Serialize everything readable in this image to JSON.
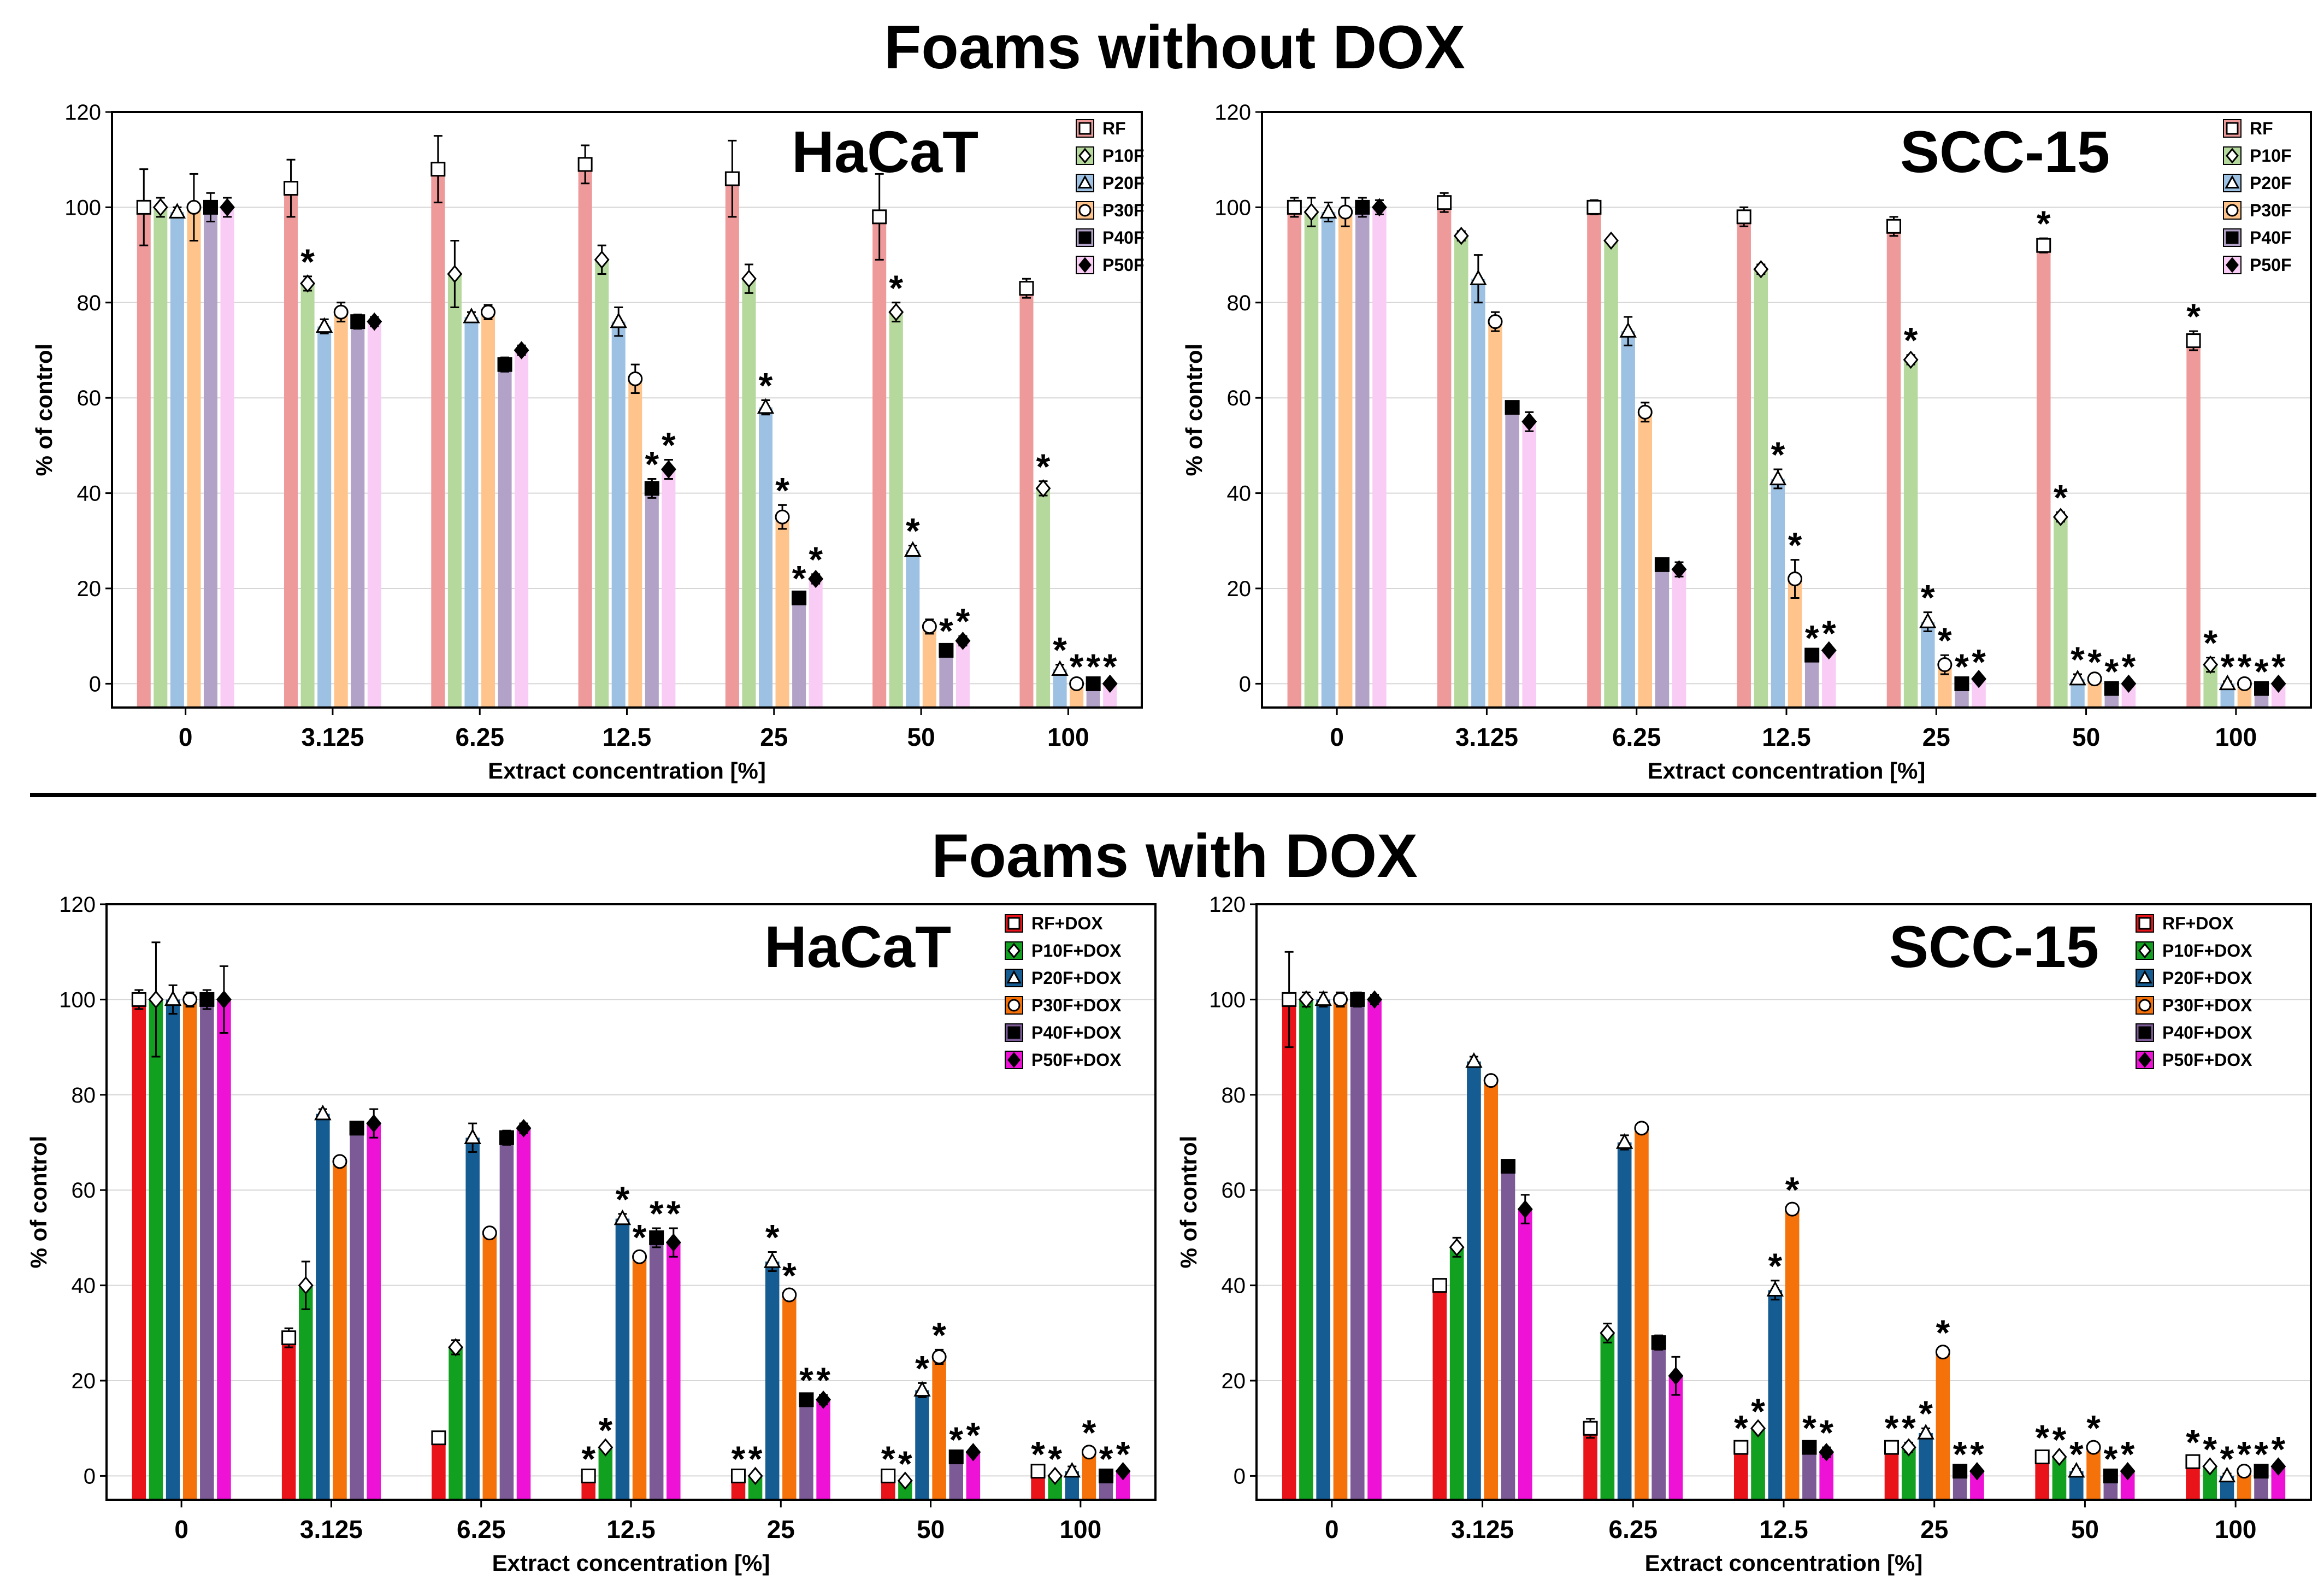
{
  "sections": {
    "top": {
      "title": "Foams without DOX"
    },
    "bottom": {
      "title": "Foams with DOX"
    }
  },
  "colors": {
    "nodox": [
      "#ef9a9a",
      "#b5d99c",
      "#9cc1e3",
      "#ffc48c",
      "#b3a2c8",
      "#f9ccf5"
    ],
    "dox": [
      "#e8141a",
      "#12a020",
      "#155c93",
      "#f5710a",
      "#7b5a95",
      "#ee12d6"
    ]
  },
  "chart_data": [
    {
      "type": "bar",
      "title": "HaCaT",
      "section": "Foams without DOX",
      "xlabel": "Extract concentration [%]",
      "ylabel": "% of control",
      "ylim": [
        -5,
        120
      ],
      "yticks": [
        0,
        20,
        40,
        60,
        80,
        100,
        120
      ],
      "legend_position": "top-right",
      "categories": [
        "0",
        "3.125",
        "6.25",
        "12.5",
        "25",
        "50",
        "100"
      ],
      "series": [
        {
          "name": "RF",
          "marker": "square",
          "values": [
            100,
            104,
            108,
            109,
            106,
            98,
            83
          ],
          "errors": [
            8,
            6,
            7,
            4,
            8,
            9,
            2
          ],
          "significant": [
            false,
            false,
            false,
            false,
            false,
            false,
            false
          ]
        },
        {
          "name": "P10F",
          "marker": "diamond",
          "values": [
            100,
            84,
            86,
            89,
            85,
            78,
            41
          ],
          "errors": [
            2,
            1.5,
            7,
            3,
            3,
            2,
            1.5
          ],
          "significant": [
            false,
            true,
            false,
            false,
            false,
            true,
            true
          ]
        },
        {
          "name": "P20F",
          "marker": "triangle",
          "values": [
            99,
            75,
            77,
            76,
            58,
            28,
            3
          ],
          "errors": [
            1,
            1.5,
            1,
            3,
            1.5,
            1,
            1
          ],
          "significant": [
            false,
            false,
            false,
            false,
            true,
            true,
            true
          ]
        },
        {
          "name": "P30F",
          "marker": "circle",
          "values": [
            100,
            78,
            78,
            64,
            35,
            12,
            0
          ],
          "errors": [
            7,
            2,
            1.5,
            3,
            2.5,
            1.5,
            0.5
          ],
          "significant": [
            false,
            false,
            false,
            false,
            true,
            false,
            true
          ]
        },
        {
          "name": "P40F",
          "marker": "filled-square",
          "values": [
            100,
            76,
            67,
            41,
            18,
            7,
            0
          ],
          "errors": [
            3,
            1.5,
            1.5,
            2,
            1,
            1,
            0.5
          ],
          "significant": [
            false,
            false,
            false,
            true,
            true,
            true,
            true
          ]
        },
        {
          "name": "P50F",
          "marker": "filled-diamond",
          "values": [
            100,
            76,
            70,
            45,
            22,
            9,
            0
          ],
          "errors": [
            2,
            1,
            1,
            2,
            1,
            1,
            0.5
          ],
          "significant": [
            false,
            false,
            false,
            true,
            true,
            true,
            true
          ]
        }
      ]
    },
    {
      "type": "bar",
      "title": "SCC-15",
      "section": "Foams without DOX",
      "xlabel": "Extract concentration [%]",
      "ylabel": "% of control",
      "ylim": [
        -5,
        120
      ],
      "yticks": [
        0,
        20,
        40,
        60,
        80,
        100,
        120
      ],
      "legend_position": "top-right",
      "categories": [
        "0",
        "3.125",
        "6.25",
        "12.5",
        "25",
        "50",
        "100"
      ],
      "series": [
        {
          "name": "RF",
          "marker": "square",
          "values": [
            100,
            101,
            100,
            98,
            96,
            92,
            72
          ],
          "errors": [
            2,
            2,
            1.5,
            2,
            2,
            1.5,
            2
          ],
          "significant": [
            false,
            false,
            false,
            false,
            false,
            true,
            true
          ]
        },
        {
          "name": "P10F",
          "marker": "diamond",
          "values": [
            99,
            94,
            93,
            87,
            68,
            35,
            4
          ],
          "errors": [
            3,
            1,
            0.5,
            1,
            1,
            1,
            1.5
          ],
          "significant": [
            false,
            false,
            false,
            false,
            true,
            true,
            true
          ]
        },
        {
          "name": "P20F",
          "marker": "triangle",
          "values": [
            99,
            85,
            74,
            43,
            13,
            1,
            0
          ],
          "errors": [
            2,
            5,
            3,
            2,
            2,
            1,
            0.5
          ],
          "significant": [
            false,
            false,
            false,
            true,
            true,
            true,
            true
          ]
        },
        {
          "name": "P30F",
          "marker": "circle",
          "values": [
            99,
            76,
            57,
            22,
            4,
            1,
            0
          ],
          "errors": [
            3,
            2,
            2,
            4,
            2,
            0.5,
            0.5
          ],
          "significant": [
            false,
            false,
            false,
            true,
            true,
            true,
            true
          ]
        },
        {
          "name": "P40F",
          "marker": "filled-square",
          "values": [
            100,
            58,
            25,
            6,
            0,
            -1,
            -1
          ],
          "errors": [
            2,
            1,
            0.5,
            0.5,
            0.5,
            0.5,
            0.5
          ],
          "significant": [
            false,
            false,
            false,
            true,
            true,
            true,
            true
          ]
        },
        {
          "name": "P50F",
          "marker": "filled-diamond",
          "values": [
            100,
            55,
            24,
            7,
            1,
            0,
            0
          ],
          "errors": [
            1.5,
            2,
            1.5,
            0.5,
            0.5,
            0.5,
            0.5
          ],
          "significant": [
            false,
            false,
            false,
            true,
            true,
            true,
            true
          ]
        }
      ]
    },
    {
      "type": "bar",
      "title": "HaCaT",
      "section": "Foams with DOX",
      "xlabel": "Extract concentration [%]",
      "ylabel": "% of control",
      "ylim": [
        -5,
        120
      ],
      "yticks": [
        0,
        20,
        40,
        60,
        80,
        100,
        120
      ],
      "legend_position": "top-right",
      "categories": [
        "0",
        "3.125",
        "6.25",
        "12.5",
        "25",
        "50",
        "100"
      ],
      "series": [
        {
          "name": "RF+DOX",
          "marker": "square",
          "values": [
            100,
            29,
            8,
            0,
            0,
            0,
            1
          ],
          "errors": [
            2,
            2,
            1,
            0.5,
            0.5,
            0.5,
            0.5
          ],
          "significant": [
            false,
            false,
            false,
            true,
            true,
            true,
            true
          ]
        },
        {
          "name": "P10F+DOX",
          "marker": "diamond",
          "values": [
            100,
            40,
            27,
            6,
            0,
            -1,
            0
          ],
          "errors": [
            12,
            5,
            1.5,
            0.5,
            0.5,
            0.5,
            0.5
          ],
          "significant": [
            false,
            false,
            false,
            true,
            true,
            true,
            true
          ]
        },
        {
          "name": "P20F+DOX",
          "marker": "triangle",
          "values": [
            100,
            76,
            71,
            54,
            45,
            18,
            1
          ],
          "errors": [
            3,
            1,
            3,
            1,
            2,
            1.5,
            1
          ],
          "significant": [
            false,
            false,
            false,
            true,
            true,
            true,
            false
          ]
        },
        {
          "name": "P30F+DOX",
          "marker": "circle",
          "values": [
            100,
            66,
            51,
            46,
            38,
            25,
            5
          ],
          "errors": [
            1.5,
            1,
            1,
            1,
            1,
            1.5,
            1
          ],
          "significant": [
            false,
            false,
            false,
            true,
            true,
            true,
            true
          ]
        },
        {
          "name": "P40F+DOX",
          "marker": "filled-square",
          "values": [
            100,
            73,
            71,
            50,
            16,
            4,
            0
          ],
          "errors": [
            2,
            1,
            1.5,
            2,
            1,
            0.5,
            0.5
          ],
          "significant": [
            false,
            false,
            false,
            true,
            true,
            true,
            true
          ]
        },
        {
          "name": "P50F+DOX",
          "marker": "filled-diamond",
          "values": [
            100,
            74,
            73,
            49,
            16,
            5,
            1
          ],
          "errors": [
            7,
            3,
            1,
            3,
            1,
            0.5,
            0.5
          ],
          "significant": [
            false,
            false,
            false,
            true,
            true,
            true,
            true
          ]
        }
      ]
    },
    {
      "type": "bar",
      "title": "SCC-15",
      "section": "Foams with DOX",
      "xlabel": "Extract concentration [%]",
      "ylabel": "% of control",
      "ylim": [
        -5,
        120
      ],
      "yticks": [
        0,
        20,
        40,
        60,
        80,
        100,
        120
      ],
      "legend_position": "top-right",
      "categories": [
        "0",
        "3.125",
        "6.25",
        "12.5",
        "25",
        "50",
        "100"
      ],
      "series": [
        {
          "name": "RF+DOX",
          "marker": "square",
          "values": [
            100,
            40,
            10,
            6,
            6,
            4,
            3
          ],
          "errors": [
            10,
            1,
            2,
            1,
            1,
            1,
            1
          ],
          "significant": [
            false,
            false,
            false,
            true,
            true,
            true,
            true
          ]
        },
        {
          "name": "P10F+DOX",
          "marker": "diamond",
          "values": [
            100,
            48,
            30,
            10,
            6,
            4,
            2
          ],
          "errors": [
            1.5,
            2,
            2,
            0.5,
            1,
            0.5,
            0.5
          ],
          "significant": [
            false,
            false,
            false,
            true,
            true,
            true,
            true
          ]
        },
        {
          "name": "P20F+DOX",
          "marker": "triangle",
          "values": [
            100,
            87,
            70,
            39,
            9,
            1,
            0
          ],
          "errors": [
            1.5,
            1,
            1.5,
            2,
            1,
            0.5,
            0.5
          ],
          "significant": [
            false,
            false,
            false,
            true,
            true,
            true,
            true
          ]
        },
        {
          "name": "P30F+DOX",
          "marker": "circle",
          "values": [
            100,
            83,
            73,
            56,
            26,
            6,
            1
          ],
          "errors": [
            1.5,
            1,
            1,
            1,
            1,
            1,
            0.5
          ],
          "significant": [
            false,
            false,
            false,
            true,
            true,
            true,
            true
          ]
        },
        {
          "name": "P40F+DOX",
          "marker": "filled-square",
          "values": [
            100,
            65,
            28,
            6,
            1,
            0,
            1
          ],
          "errors": [
            1.5,
            1,
            1.5,
            1,
            0.5,
            0.5,
            0.5
          ],
          "significant": [
            false,
            false,
            false,
            true,
            true,
            true,
            true
          ]
        },
        {
          "name": "P50F+DOX",
          "marker": "filled-diamond",
          "values": [
            100,
            56,
            21,
            5,
            1,
            1,
            2
          ],
          "errors": [
            1,
            3,
            4,
            1,
            0.5,
            0.5,
            0.5
          ],
          "significant": [
            false,
            false,
            false,
            true,
            true,
            true,
            true
          ]
        }
      ]
    }
  ]
}
